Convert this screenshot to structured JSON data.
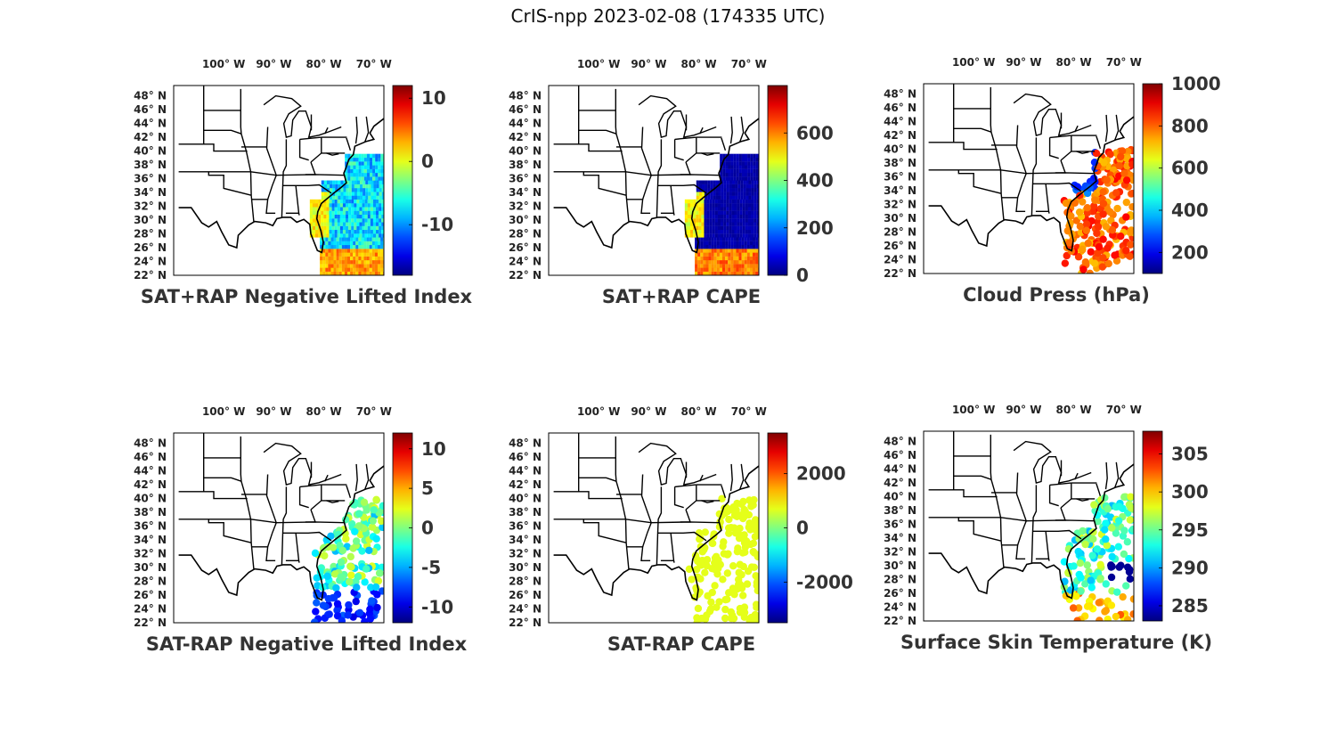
{
  "figure_title": "CrIS-npp 2023-02-08 (174335 UTC)",
  "lon_labels": [
    "100° W",
    "90° W",
    "80° W",
    "70° W"
  ],
  "lon_values": [
    -100,
    -90,
    -80,
    -70
  ],
  "lat_labels": [
    "48° N",
    "46° N",
    "44° N",
    "42° N",
    "40° N",
    "38° N",
    "36° N",
    "34° N",
    "32° N",
    "30° N",
    "28° N",
    "26° N",
    "24° N",
    "22° N"
  ],
  "lat_values": [
    48,
    46,
    44,
    42,
    40,
    38,
    36,
    34,
    32,
    30,
    28,
    26,
    24,
    22
  ],
  "map_extent": {
    "lon": [
      -110,
      -68
    ],
    "lat": [
      22,
      49.5
    ]
  },
  "colormap": "jet",
  "chart_data": [
    {
      "type": "heatmap",
      "title": "SAT+RAP Negative Lifted Index",
      "colorbar": {
        "clim": [
          -18,
          12
        ],
        "ticks": [
          10,
          0,
          -10
        ],
        "tick_labels": [
          "10",
          "0",
          "-10"
        ]
      },
      "coverage": "swath",
      "data": {
        "type": "swath",
        "base": 0.35,
        "variation": 0.12,
        "south_hot": 0.72
      }
    },
    {
      "type": "heatmap",
      "title": "SAT+RAP CAPE",
      "colorbar": {
        "clim": [
          0,
          800
        ],
        "ticks": [
          600,
          400,
          200,
          0
        ],
        "tick_labels": [
          "600",
          "400",
          "200",
          "0"
        ]
      },
      "coverage": "swath",
      "data": {
        "type": "swath",
        "base": 0.04,
        "variation": 0.02,
        "south_hot": 0.75
      }
    },
    {
      "type": "scatter",
      "title": "Cloud Press (hPa)",
      "colorbar": {
        "clim": [
          100,
          1000
        ],
        "ticks": [
          1000,
          800,
          600,
          400,
          200
        ],
        "tick_labels": [
          "1000",
          "800",
          "600",
          "400",
          "200"
        ]
      },
      "coverage": "cloudy fov",
      "data": {
        "type": "dots",
        "base": 0.78,
        "variation": 0.1,
        "north_low": 0.2
      }
    },
    {
      "type": "scatter",
      "title": "SAT-RAP Negative Lifted Index",
      "colorbar": {
        "clim": [
          -12,
          12
        ],
        "ticks": [
          10,
          5,
          0,
          -5,
          -10
        ],
        "tick_labels": [
          "10",
          "5",
          "0",
          "-5",
          "-10"
        ]
      },
      "coverage": "clear fov",
      "data": {
        "type": "dots",
        "base": 0.45,
        "variation": 0.15,
        "south_low": 0.1
      }
    },
    {
      "type": "scatter",
      "title": "SAT-RAP CAPE",
      "colorbar": {
        "clim": [
          -3500,
          3500
        ],
        "ticks": [
          2000,
          0,
          -2000
        ],
        "tick_labels": [
          "2000",
          "0",
          "-2000"
        ]
      },
      "coverage": "clear fov",
      "data": {
        "type": "dots",
        "base": 0.6,
        "variation": 0.0
      }
    },
    {
      "type": "scatter",
      "title": "Surface Skin Temperature (K)",
      "colorbar": {
        "clim": [
          283,
          308
        ],
        "ticks": [
          305,
          300,
          295,
          290,
          285
        ],
        "tick_labels": [
          "305",
          "300",
          "295",
          "290",
          "285"
        ]
      },
      "coverage": "clear fov",
      "data": {
        "type": "dots",
        "base": 0.45,
        "variation": 0.15,
        "south_warm": 0.7
      }
    }
  ]
}
